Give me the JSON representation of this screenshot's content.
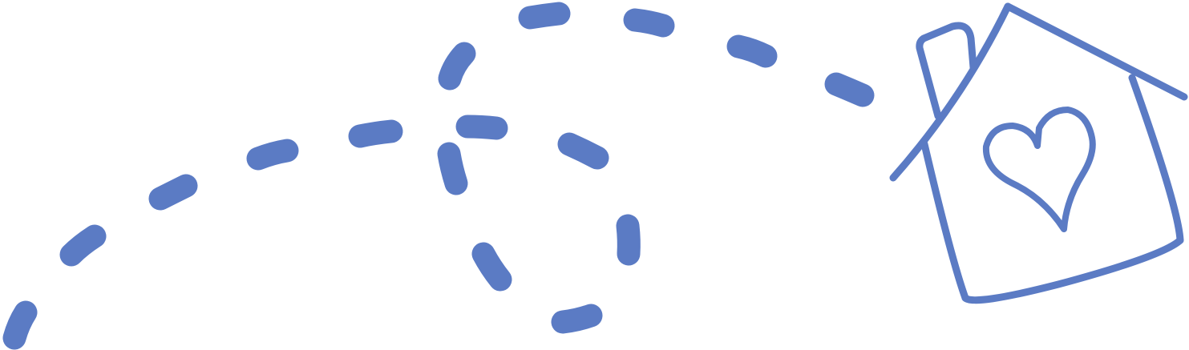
{
  "illustration": {
    "stroke_color": "#5b7bc4",
    "background_color": "#ffffff",
    "icons": [
      "dashed-path-icon",
      "house-icon",
      "heart-icon"
    ]
  }
}
